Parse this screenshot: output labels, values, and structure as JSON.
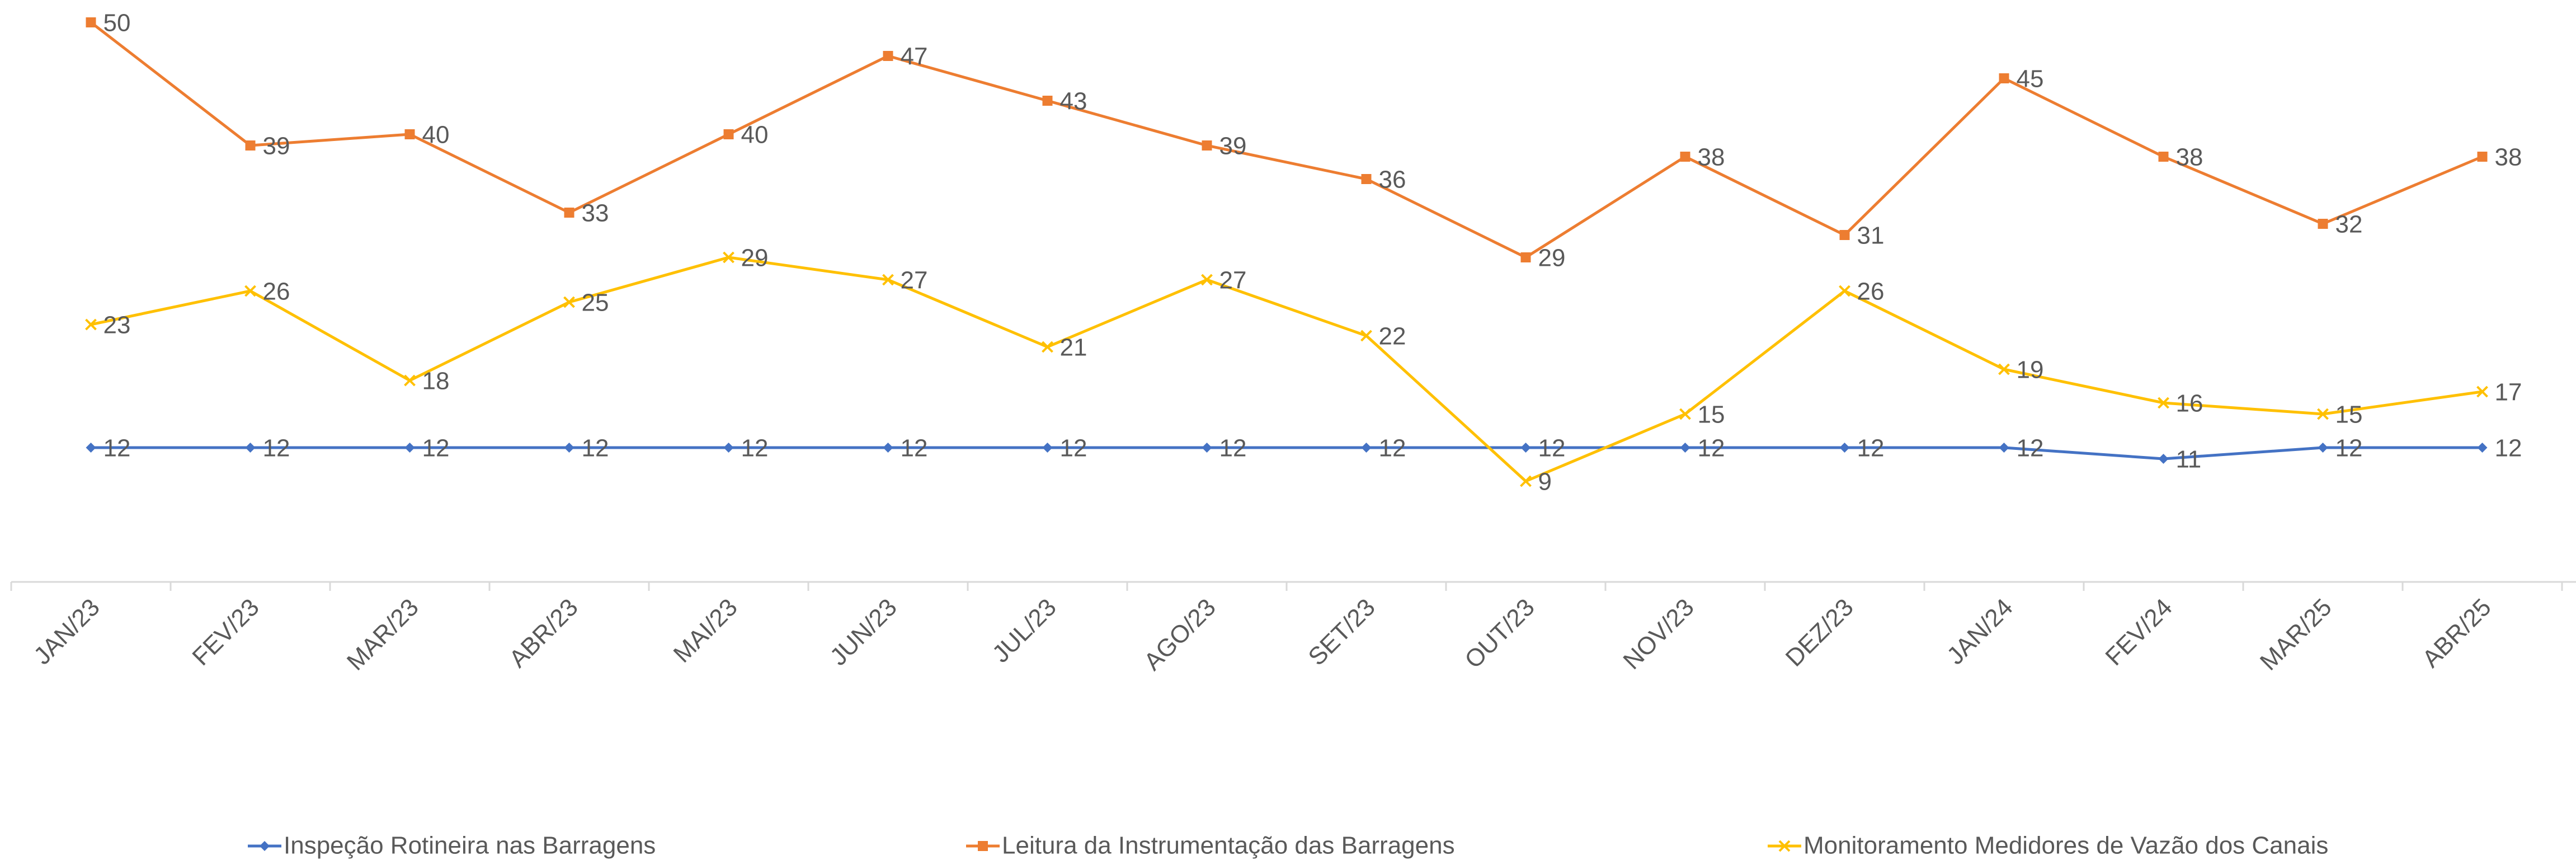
{
  "chart_data": {
    "type": "line",
    "categories": [
      "JAN/23",
      "FEV/23",
      "MAR/23",
      "ABR/23",
      "MAI/23",
      "JUN/23",
      "JUL/23",
      "AGO/23",
      "SET/23",
      "OUT/23",
      "NOV/23",
      "DEZ/23",
      "JAN/24",
      "FEV/24",
      "MAR/25",
      "ABR/25"
    ],
    "series": [
      {
        "name": "Inspeção Rotineira nas Barragens",
        "color": "#4472c4",
        "marker": "diamond",
        "values": [
          12,
          12,
          12,
          12,
          12,
          12,
          12,
          12,
          12,
          12,
          12,
          12,
          12,
          11,
          12,
          12
        ]
      },
      {
        "name": "Leitura da Instrumentação das Barragens",
        "color": "#ed7d31",
        "marker": "square",
        "values": [
          50,
          39,
          40,
          33,
          40,
          47,
          43,
          39,
          36,
          29,
          38,
          31,
          45,
          38,
          32,
          38
        ]
      },
      {
        "name": "Monitoramento Medidores de Vazão dos Canais",
        "color": "#ffc000",
        "marker": "x",
        "values": [
          23,
          26,
          18,
          25,
          29,
          27,
          21,
          27,
          22,
          9,
          15,
          26,
          19,
          16,
          15,
          17
        ]
      }
    ],
    "ylim": [
      0,
      52
    ],
    "grid": false,
    "legend": "bottom"
  }
}
